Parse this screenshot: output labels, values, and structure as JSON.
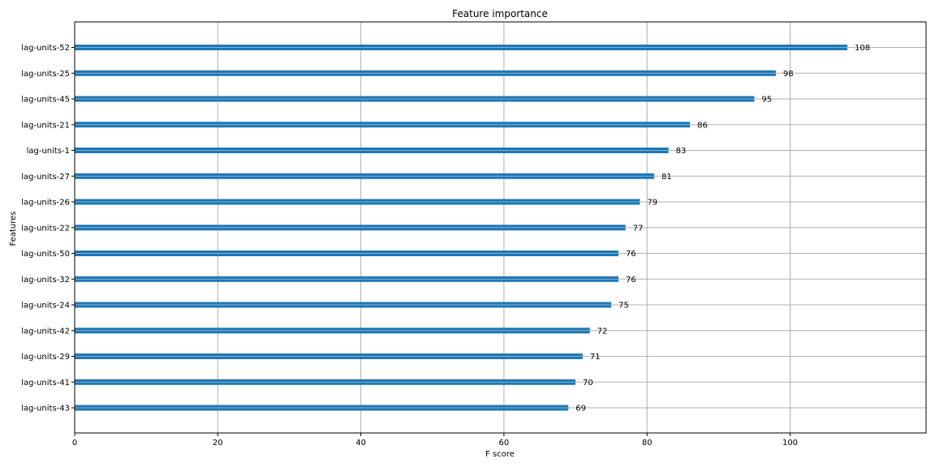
{
  "chart_data": {
    "type": "bar",
    "orientation": "horizontal",
    "title": "Feature importance",
    "xlabel": "F score",
    "ylabel": "Features",
    "xlim": [
      0,
      119
    ],
    "xticks": [
      0,
      20,
      40,
      60,
      80,
      100
    ],
    "grid": true,
    "categories": [
      "lag-units-52",
      "lag-units-25",
      "lag-units-45",
      "lag-units-21",
      "lag-units-1",
      "lag-units-27",
      "lag-units-26",
      "lag-units-22",
      "lag-units-50",
      "lag-units-32",
      "lag-units-24",
      "lag-units-42",
      "lag-units-29",
      "lag-units-41",
      "lag-units-43"
    ],
    "values": [
      108,
      98,
      95,
      86,
      83,
      81,
      79,
      77,
      76,
      76,
      75,
      72,
      71,
      70,
      69
    ],
    "bar_color": "#1f77b4",
    "grid_color": "#b0b0b0"
  }
}
